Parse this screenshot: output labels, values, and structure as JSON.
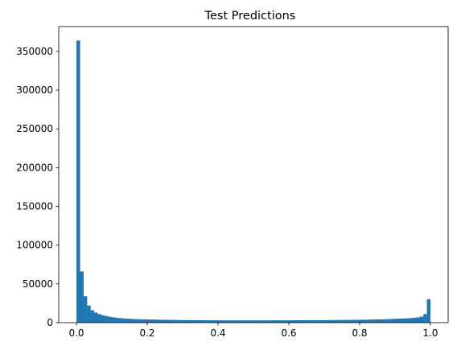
{
  "chart_data": {
    "type": "bar",
    "title": "Test Predictions",
    "xlabel": "",
    "ylabel": "",
    "bin_width": 0.01,
    "x": [
      0.0,
      0.01,
      0.02,
      0.03,
      0.04,
      0.05,
      0.06,
      0.07,
      0.08,
      0.09,
      0.1,
      0.11,
      0.12,
      0.13,
      0.14,
      0.15,
      0.16,
      0.17,
      0.18,
      0.19,
      0.2,
      0.21,
      0.22,
      0.23,
      0.24,
      0.25,
      0.26,
      0.27,
      0.28,
      0.29,
      0.3,
      0.31,
      0.32,
      0.33,
      0.34,
      0.35,
      0.36,
      0.37,
      0.38,
      0.39,
      0.4,
      0.41,
      0.42,
      0.43,
      0.44,
      0.45,
      0.46,
      0.47,
      0.48,
      0.49,
      0.5,
      0.51,
      0.52,
      0.53,
      0.54,
      0.55,
      0.56,
      0.57,
      0.58,
      0.59,
      0.6,
      0.61,
      0.62,
      0.63,
      0.64,
      0.65,
      0.66,
      0.67,
      0.68,
      0.69,
      0.7,
      0.71,
      0.72,
      0.73,
      0.74,
      0.75,
      0.76,
      0.77,
      0.78,
      0.79,
      0.8,
      0.81,
      0.82,
      0.83,
      0.84,
      0.85,
      0.86,
      0.87,
      0.88,
      0.89,
      0.9,
      0.91,
      0.92,
      0.93,
      0.94,
      0.95,
      0.96,
      0.97,
      0.98,
      0.99
    ],
    "values": [
      364000,
      66000,
      34000,
      22000,
      16000,
      13000,
      11000,
      9500,
      8500,
      7500,
      6800,
      6200,
      5800,
      5400,
      5100,
      4800,
      4600,
      4400,
      4300,
      4200,
      4100,
      4000,
      3900,
      3800,
      3700,
      3600,
      3600,
      3500,
      3400,
      3400,
      3300,
      3300,
      3200,
      3200,
      3100,
      3100,
      3100,
      3000,
      3000,
      3000,
      3000,
      2900,
      2900,
      2900,
      2900,
      2900,
      2900,
      2900,
      2900,
      2900,
      2900,
      2900,
      2900,
      2900,
      2900,
      3000,
      3000,
      3000,
      3000,
      3000,
      3000,
      3100,
      3100,
      3100,
      3100,
      3200,
      3200,
      3200,
      3200,
      3300,
      3300,
      3300,
      3400,
      3400,
      3400,
      3500,
      3500,
      3600,
      3600,
      3700,
      3700,
      3800,
      3900,
      4000,
      4100,
      4200,
      4300,
      4400,
      4600,
      4800,
      5000,
      5200,
      5400,
      5600,
      5900,
      6300,
      6800,
      7800,
      11000,
      30000
    ],
    "xlim": [
      -0.05,
      1.05
    ],
    "ylim": [
      0,
      382000
    ],
    "xticks": [
      0.0,
      0.2,
      0.4,
      0.6,
      0.8,
      1.0
    ],
    "xtick_labels": [
      "0.0",
      "0.2",
      "0.4",
      "0.6",
      "0.8",
      "1.0"
    ],
    "yticks": [
      0,
      50000,
      100000,
      150000,
      200000,
      250000,
      300000,
      350000
    ],
    "ytick_labels": [
      "0",
      "50000",
      "100000",
      "150000",
      "200000",
      "250000",
      "300000",
      "350000"
    ],
    "grid": false,
    "bar_color": "#1f77b4"
  }
}
